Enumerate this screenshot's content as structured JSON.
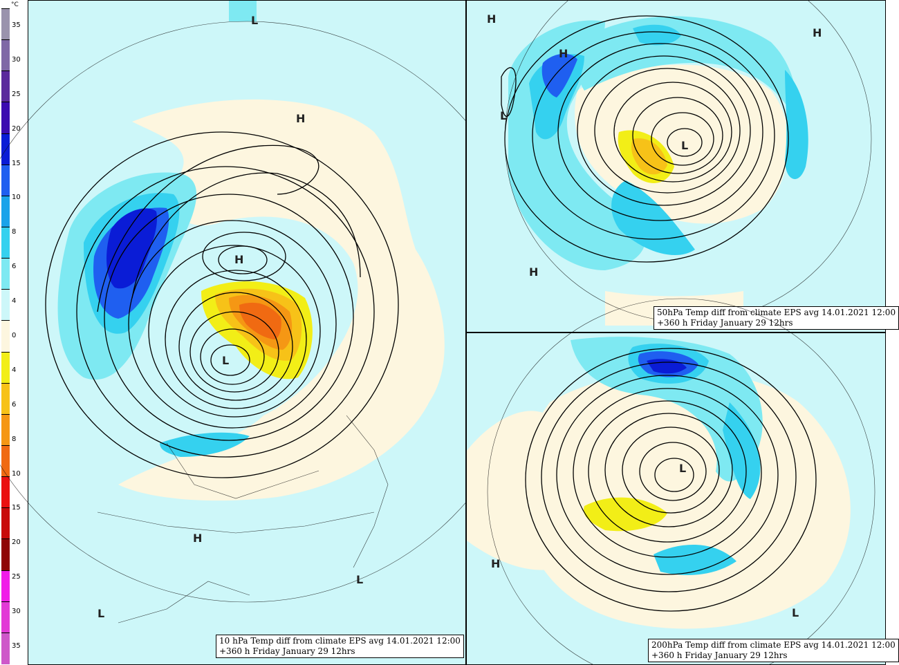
{
  "legend": {
    "unit": "°C",
    "ticks": [
      "35",
      "30",
      "25",
      "20",
      "15",
      "10",
      "8",
      "6",
      "4",
      "0",
      "4",
      "6",
      "8",
      "10",
      "15",
      "20",
      "25",
      "30",
      "35"
    ],
    "colors": [
      "#9a93ad",
      "#7f68a6",
      "#5b2a9c",
      "#3b0bb0",
      "#0a1cd6",
      "#1f5ff0",
      "#1aa3ea",
      "#35d1ef",
      "#7ee9f2",
      "#cdf7f9",
      "#fdf6df",
      "#f2ee17",
      "#f7c218",
      "#f59714",
      "#f06a12",
      "#ea1010",
      "#c80a0a",
      "#8f0505",
      "#f01ce8",
      "#e23ad6",
      "#ce58c9"
    ]
  },
  "panels": [
    {
      "id": "10hpa",
      "caption_line1": "10 hPa Temp diff from climate EPS avg 14.01.2021 12:00",
      "caption_line2": " +360 h Friday January 29 12hrs",
      "labels": [
        "L",
        "H",
        "H",
        "L",
        "H",
        "L",
        "L"
      ]
    },
    {
      "id": "50hpa",
      "caption_line1": "50hPa Temp diff from climate EPS avg 14.01.2021 12:00",
      "caption_line2": " +360 h Friday January 29 12hrs",
      "labels": [
        "H",
        "H",
        "H",
        "L",
        "L",
        "H"
      ]
    },
    {
      "id": "200hpa",
      "caption_line1": "200hPa Temp diff from climate EPS avg 14.01.2021 12:00",
      "caption_line2": " +360 h Friday January 29 12hrs",
      "labels": [
        "L",
        "H",
        "L"
      ]
    }
  ]
}
